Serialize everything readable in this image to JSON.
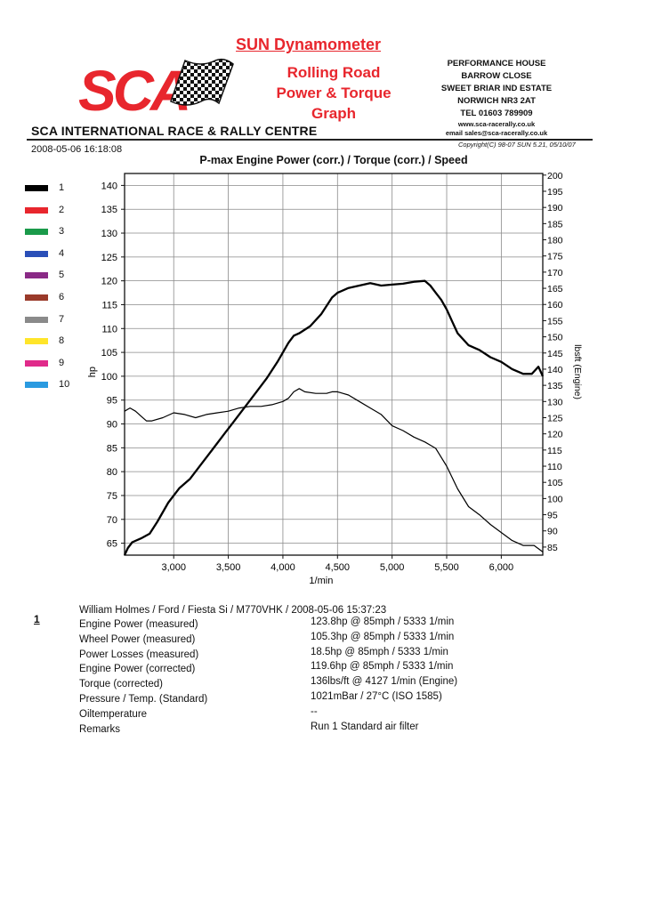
{
  "header": {
    "logo": "SCA",
    "dyno_title": "SUN Dynamometer",
    "graph_title_lines": [
      "Rolling Road",
      "Power & Torque",
      "Graph"
    ],
    "address_lines": [
      "PERFORMANCE HOUSE",
      "BARROW CLOSE",
      "SWEET BRIAR IND ESTATE",
      "NORWICH NR3 2AT",
      "TEL 01603 789909",
      "www.sca-racerally.co.uk",
      "email sales@sca-racerally.co.uk"
    ],
    "company_line": "SCA INTERNATIONAL RACE & RALLY CENTRE",
    "datestamp": "2008-05-06 16:18:08",
    "copyright": "Copyright(C) 98-07 SUN 5.21, 05/10/07"
  },
  "legend": [
    {
      "label": "1",
      "color": "#000000"
    },
    {
      "label": "2",
      "color": "#e8262d"
    },
    {
      "label": "3",
      "color": "#1a9a4a"
    },
    {
      "label": "4",
      "color": "#2a4fb8"
    },
    {
      "label": "5",
      "color": "#8a2a86"
    },
    {
      "label": "6",
      "color": "#9a3a2a"
    },
    {
      "label": "7",
      "color": "#8a8a8a"
    },
    {
      "label": "8",
      "color": "#ffe52a"
    },
    {
      "label": "9",
      "color": "#e02a8a"
    },
    {
      "label": "10",
      "color": "#2a9ae0"
    }
  ],
  "chart_data": {
    "type": "line",
    "title": "P-max Engine Power (corr.) / Torque (corr.) / Speed",
    "xlabel": "1/min",
    "ylabel_left": "hp",
    "ylabel_right": "lbsft (Engine)",
    "xlim": [
      2550,
      6380
    ],
    "ylim_left": [
      62.5,
      142.5
    ],
    "ylim_right": [
      82.5,
      200.5
    ],
    "x_ticks": [
      3000,
      3500,
      4000,
      4500,
      5000,
      5500,
      6000
    ],
    "x_tick_labels": [
      "3,000",
      "3,500",
      "4,000",
      "4,500",
      "5,000",
      "5,500",
      "6,000"
    ],
    "y_left_ticks": [
      65,
      70,
      75,
      80,
      85,
      90,
      95,
      100,
      105,
      110,
      115,
      120,
      125,
      130,
      135,
      140
    ],
    "y_right_ticks": [
      85,
      90,
      95,
      100,
      105,
      110,
      115,
      120,
      125,
      130,
      135,
      140,
      145,
      150,
      155,
      160,
      165,
      170,
      175,
      180,
      185,
      190,
      195,
      200
    ],
    "grid": true,
    "series": [
      {
        "name": "Engine Power (corr.)",
        "axis": "left",
        "color": "#000000",
        "width": 2.3,
        "x": [
          2550,
          2580,
          2620,
          2700,
          2780,
          2850,
          2950,
          3050,
          3150,
          3250,
          3350,
          3450,
          3550,
          3650,
          3750,
          3850,
          3950,
          4050,
          4100,
          4150,
          4250,
          4350,
          4450,
          4500,
          4600,
          4700,
          4800,
          4900,
          5000,
          5100,
          5200,
          5300,
          5350,
          5400,
          5450,
          5500,
          5550,
          5600,
          5700,
          5800,
          5900,
          6000,
          6100,
          6200,
          6280,
          6300,
          6340,
          6380
        ],
        "y": [
          62.5,
          64,
          65.2,
          66,
          67,
          69.5,
          73.5,
          76.5,
          78.5,
          81.5,
          84.5,
          87.5,
          90.5,
          93.5,
          96.5,
          99.5,
          103,
          107,
          108.5,
          109,
          110.5,
          113,
          116.5,
          117.5,
          118.5,
          119,
          119.5,
          119,
          119.2,
          119.4,
          119.8,
          120,
          119,
          117.5,
          116,
          114,
          111.5,
          109,
          106.5,
          105.5,
          104,
          103,
          101.5,
          100.5,
          100.5,
          101,
          102,
          100
        ]
      },
      {
        "name": "Torque (corr.)",
        "axis": "right",
        "color": "#000000",
        "width": 1.2,
        "x": [
          2550,
          2600,
          2650,
          2700,
          2750,
          2800,
          2900,
          3000,
          3100,
          3200,
          3300,
          3400,
          3500,
          3600,
          3700,
          3800,
          3900,
          4000,
          4050,
          4100,
          4150,
          4200,
          4300,
          4400,
          4450,
          4500,
          4550,
          4600,
          4700,
          4800,
          4900,
          5000,
          5100,
          5200,
          5300,
          5350,
          5400,
          5500,
          5600,
          5700,
          5800,
          5900,
          6000,
          6100,
          6200,
          6300,
          6380
        ],
        "y": [
          127,
          128,
          127,
          125.5,
          124,
          124,
          125,
          126.5,
          126,
          125,
          126,
          126.5,
          127,
          128,
          128.5,
          128.5,
          129,
          130,
          131,
          133,
          134,
          133,
          132.5,
          132.5,
          133,
          133,
          132.5,
          132,
          130,
          128,
          126,
          122.5,
          121,
          119,
          117.5,
          116.5,
          115.5,
          110,
          103,
          97.5,
          95,
          92,
          89.5,
          87,
          85.5,
          85.5,
          83.5
        ]
      }
    ]
  },
  "run": {
    "number": "1",
    "title": "William Holmes / Ford / Fiesta Si / M770VHK / 2008-05-06 15:37:23",
    "rows": [
      {
        "label": "Engine Power (measured)",
        "value": "123.8hp @ 85mph / 5333 1/min"
      },
      {
        "label": "Wheel Power (measured)",
        "value": "105.3hp @ 85mph / 5333 1/min"
      },
      {
        "label": "Power Losses (measured)",
        "value": "18.5hp @ 85mph / 5333 1/min"
      },
      {
        "label": "Engine Power (corrected)",
        "value": "119.6hp @ 85mph / 5333 1/min"
      },
      {
        "label": "Torque (corrected)",
        "value": "136lbs/ft @ 4127 1/min (Engine)"
      },
      {
        "label": "Pressure / Temp. (Standard)",
        "value": "1021mBar / 27°C   (ISO 1585)"
      },
      {
        "label": "Oiltemperature",
        "value": "--"
      },
      {
        "label": "Remarks",
        "value": "Run 1 Standard air filter"
      }
    ]
  }
}
